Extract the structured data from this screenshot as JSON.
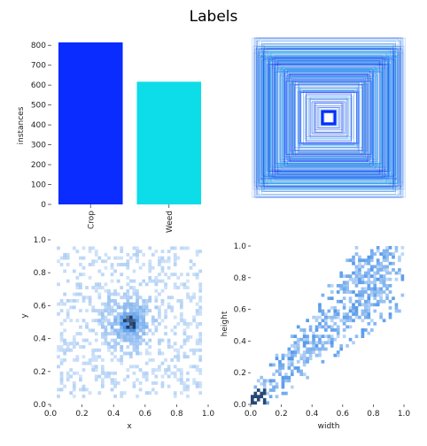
{
  "page": {
    "title": "Labels"
  },
  "colors": {
    "crop": "#0a2cff",
    "weed": "#0ddde8",
    "hist": "#4d94e8",
    "hist_dark": "#1c3f6e"
  },
  "chart_data": [
    {
      "type": "bar",
      "title": "",
      "categories": [
        "Crop",
        "Weed"
      ],
      "values": [
        815,
        617
      ],
      "ylabel": "instances",
      "xlabel": "",
      "ylim": [
        0,
        850
      ],
      "yticks": [
        "0",
        "100",
        "200",
        "300",
        "400",
        "500",
        "600",
        "700",
        "800"
      ]
    },
    {
      "type": "boxes",
      "title": "",
      "description_units": "normalized box width/height centered overlay"
    },
    {
      "type": "heatmap",
      "title": "",
      "xlabel": "x",
      "ylabel": "y",
      "xlim": [
        0,
        1
      ],
      "ylim": [
        0,
        1
      ],
      "xticks": [
        "0.0",
        "0.2",
        "0.4",
        "0.6",
        "0.8",
        "1.0"
      ],
      "yticks": [
        "0.0",
        "0.2",
        "0.4",
        "0.6",
        "0.8",
        "1.0"
      ]
    },
    {
      "type": "heatmap",
      "title": "",
      "xlabel": "width",
      "ylabel": "height",
      "xlim": [
        0,
        1
      ],
      "ylim": [
        0,
        1
      ],
      "xticks": [
        "0.0",
        "0.2",
        "0.4",
        "0.6",
        "0.8",
        "1.0"
      ],
      "yticks": [
        "0.0",
        "0.2",
        "0.4",
        "0.6",
        "0.8",
        "1.0"
      ]
    }
  ]
}
